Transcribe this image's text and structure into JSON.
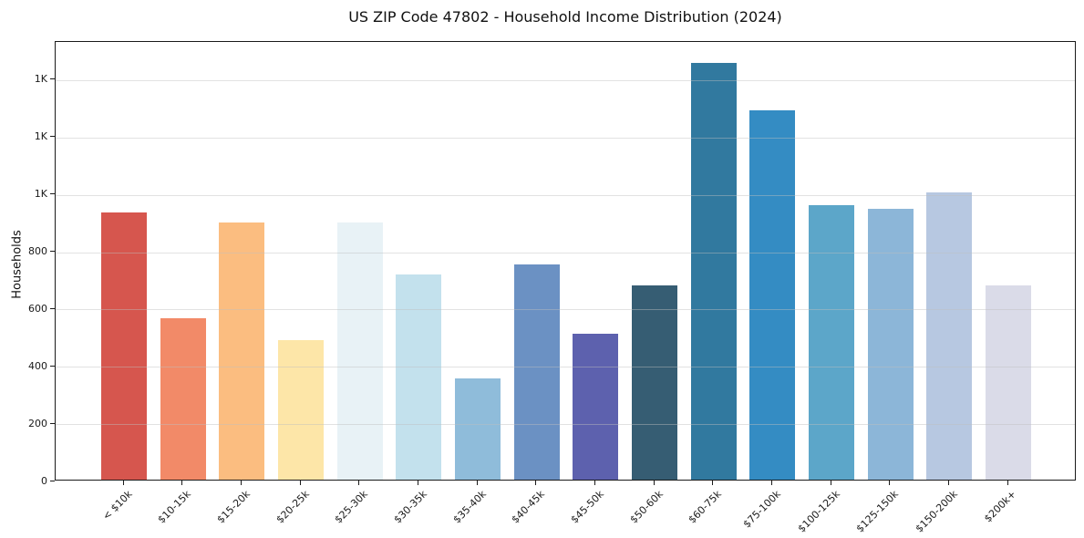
{
  "figure": {
    "title": "US ZIP Code 47802 - Household Income Distribution (2024)"
  },
  "chart_data": {
    "type": "bar",
    "title": "US ZIP Code 47802 - Household Income Distribution (2024)",
    "xlabel": "",
    "ylabel": "Households",
    "categories": [
      "< $10k",
      "$10-15k",
      "$15-20k",
      "$20-25k",
      "$25-30k",
      "$30-35k",
      "$35-40k",
      "$40-45k",
      "$45-50k",
      "$50-60k",
      "$60-75k",
      "$75-100k",
      "$100-125k",
      "$125-150k",
      "$150-200k",
      "$200k+"
    ],
    "values": [
      935,
      565,
      900,
      490,
      900,
      720,
      355,
      755,
      510,
      680,
      1460,
      1295,
      960,
      950,
      1005,
      680
    ],
    "bar_colors": [
      "#d6564e",
      "#f28a68",
      "#fbbd80",
      "#fde6a8",
      "#e8f2f6",
      "#c3e1ed",
      "#8fbcda",
      "#6b91c3",
      "#5d61ae",
      "#365d73",
      "#31799f",
      "#348cc3",
      "#5ca6c9",
      "#8cb6d8",
      "#b7c8e1",
      "#dadbe8"
    ],
    "ylim": [
      0,
      1533
    ],
    "yticks": {
      "values": [
        0,
        200,
        400,
        600,
        800,
        1000,
        1200,
        1400
      ],
      "labels": [
        "0",
        "200",
        "400",
        "600",
        "800",
        "1K",
        "1K",
        "1K"
      ]
    },
    "grid": "horizontal",
    "legend_position": "none",
    "background": "#ffffff",
    "axis_color": "#1a1a1a",
    "grid_color": "#e6e6e6"
  }
}
